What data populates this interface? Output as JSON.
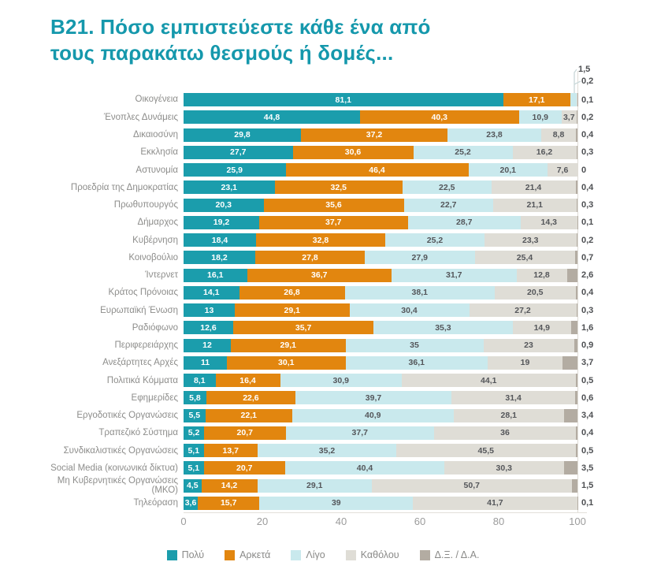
{
  "title": "B21. Πόσο εμπιστεύεστε κάθε ένα από\nτους παρακάτω θεσμούς ή δομές...",
  "colors": {
    "title": "#1598AC",
    "poly": "#1B9DAC",
    "arketa": "#E2860F",
    "ligo": "#C9E9ED",
    "katholou": "#DFDDD6",
    "dxda": "#B3ACA2"
  },
  "chart_data": {
    "type": "bar",
    "stacked": true,
    "orientation": "horizontal",
    "title": "B21. Πόσο εμπιστεύεστε κάθε ένα από τους παρακάτω θεσμούς ή δομές...",
    "xlabel": "",
    "ylabel": "",
    "xlim": [
      0,
      100
    ],
    "xticks": [
      0,
      20,
      40,
      60,
      80,
      100
    ],
    "grid": false,
    "legend_position": "bottom",
    "categories": [
      "Οικογένεια",
      "Ένοπλες Δυνάμεις",
      "Δικαιοσύνη",
      "Εκκλησία",
      "Αστυνομία",
      "Προεδρία της Δημοκρατίας",
      "Πρωθυπουργός",
      "Δήμαρχος",
      "Κυβέρνηση",
      "Κοινοβούλιο",
      "Ίντερνετ",
      "Κράτος Πρόνοιας",
      "Ευρωπαϊκή Ένωση",
      "Ραδιόφωνο",
      "Περιφερειάρχης",
      "Ανεξάρτητες Αρχές",
      "Πολιτικά Κόμματα",
      "Εφημερίδες",
      "Εργοδοτικές Οργανώσεις",
      "Τραπεζικό Σύστημα",
      "Συνδικαλιστικές Οργανώσεις",
      "Social Media (κοινωνικά δίκτυα)",
      "Μη Κυβερνητικές Οργανώσεις\n(ΜΚΟ)",
      "Τηλεόραση"
    ],
    "series": [
      {
        "name": "Πολύ",
        "color": "#1B9DAC",
        "values": [
          81.1,
          44.8,
          29.8,
          27.7,
          25.9,
          23.1,
          20.3,
          19.2,
          18.4,
          18.2,
          16.1,
          14.1,
          13,
          12.6,
          12,
          11,
          8.1,
          5.8,
          5.5,
          5.2,
          5.1,
          5.1,
          4.5,
          3.6
        ]
      },
      {
        "name": "Αρκετά",
        "color": "#E2860F",
        "values": [
          17.1,
          40.3,
          37.2,
          30.6,
          46.4,
          32.5,
          35.6,
          37.7,
          32.8,
          27.8,
          36.7,
          26.8,
          29.1,
          35.7,
          29.1,
          30.1,
          16.4,
          22.6,
          22.1,
          20.7,
          13.7,
          20.7,
          14.2,
          15.7
        ]
      },
      {
        "name": "Λίγο",
        "color": "#C9E9ED",
        "values": [
          1.5,
          10.9,
          23.8,
          25.2,
          20.1,
          22.5,
          22.7,
          28.7,
          25.2,
          27.9,
          31.7,
          38.1,
          30.4,
          35.3,
          35,
          36.1,
          30.9,
          39.7,
          40.9,
          37.7,
          35.2,
          40.4,
          29.1,
          39
        ]
      },
      {
        "name": "Καθόλου",
        "color": "#DFDDD6",
        "values": [
          0.2,
          3.7,
          8.8,
          16.2,
          7.6,
          21.4,
          21.1,
          14.3,
          23.3,
          25.4,
          12.8,
          20.5,
          27.2,
          14.9,
          23,
          19,
          44.1,
          31.4,
          28.1,
          36,
          45.5,
          30.3,
          50.7,
          41.7
        ]
      },
      {
        "name": "Δ.Ξ. / Δ.Α.",
        "color": "#B3ACA2",
        "values": [
          0.1,
          0.2,
          0.4,
          0.3,
          0,
          0.4,
          0.3,
          0.1,
          0.2,
          0.7,
          2.6,
          0.4,
          0.3,
          1.6,
          0.9,
          3.7,
          0.5,
          0.6,
          3.4,
          0.4,
          0.5,
          3.5,
          1.5,
          0.1
        ]
      }
    ],
    "callouts": [
      {
        "category": "Οικογένεια",
        "series": "Λίγο",
        "label": "1,5"
      },
      {
        "category": "Οικογένεια",
        "series": "Καθόλου",
        "label": "0,2"
      }
    ]
  },
  "x_axis": {
    "ticks": [
      "0",
      "20",
      "40",
      "60",
      "80",
      "100"
    ]
  },
  "legend": {
    "items": [
      {
        "label": "Πολύ",
        "color": "#1B9DAC"
      },
      {
        "label": "Αρκετά",
        "color": "#E2860F"
      },
      {
        "label": "Λίγο",
        "color": "#C9E9ED"
      },
      {
        "label": "Καθόλου",
        "color": "#DFDDD6"
      },
      {
        "label": "Δ.Ξ. / Δ.Α.",
        "color": "#B3ACA2"
      }
    ]
  }
}
